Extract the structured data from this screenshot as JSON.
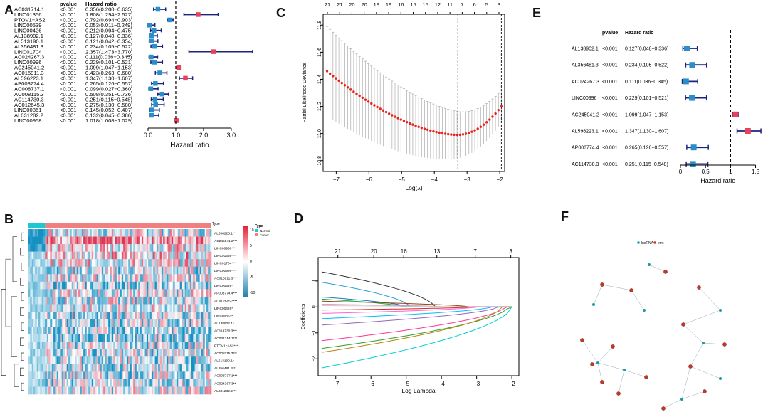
{
  "panel_labels": {
    "A": "A",
    "B": "B",
    "C": "C",
    "D": "D",
    "E": "E",
    "F": "F"
  },
  "chart_data": [
    {
      "id": "A",
      "type": "forest",
      "header_pvalue": "pvalue",
      "header_hr": "Hazard ratio",
      "xlabel": "Hazard ratio",
      "xlim": [
        0,
        3.9
      ],
      "ref_line": 1,
      "ticks": [
        0,
        1,
        2,
        3
      ],
      "tick_labels": [
        "0.0",
        "1.0",
        "2.0",
        "3.0"
      ],
      "rows": [
        {
          "name": "AC031714.1",
          "p": "<0.001",
          "hr_text": "0.356(0.200−0.635)",
          "hr": 0.356,
          "lo": 0.2,
          "hi": 0.635
        },
        {
          "name": "LINC01356",
          "p": "<0.001",
          "hr_text": "1.808(1.294−2.527)",
          "hr": 1.808,
          "lo": 1.294,
          "hi": 2.527
        },
        {
          "name": "PTOV1−AS2",
          "p": "<0.001",
          "hr_text": "0.792(0.694−0.903)",
          "hr": 0.792,
          "lo": 0.694,
          "hi": 0.903
        },
        {
          "name": "LINC00539",
          "p": "<0.001",
          "hr_text": "0.053(0.011−0.249)",
          "hr": 0.053,
          "lo": 0.011,
          "hi": 0.249
        },
        {
          "name": "LINC00426",
          "p": "<0.001",
          "hr_text": "0.212(0.094−0.475)",
          "hr": 0.212,
          "lo": 0.094,
          "hi": 0.475
        },
        {
          "name": "AL138902.1",
          "p": "<0.001",
          "hr_text": "0.127(0.048−0.336)",
          "hr": 0.127,
          "lo": 0.048,
          "hi": 0.336
        },
        {
          "name": "AL513190.1",
          "p": "<0.001",
          "hr_text": "0.121(0.042−0.354)",
          "hr": 0.121,
          "lo": 0.042,
          "hi": 0.354
        },
        {
          "name": "AL356481.3",
          "p": "<0.001",
          "hr_text": "0.234(0.105−0.522)",
          "hr": 0.234,
          "lo": 0.105,
          "hi": 0.522
        },
        {
          "name": "LINC01704",
          "p": "<0.001",
          "hr_text": "2.357(1.473−3.770)",
          "hr": 2.357,
          "lo": 1.473,
          "hi": 3.77
        },
        {
          "name": "AC024267.3",
          "p": "<0.001",
          "hr_text": "0.111(0.036−0.345)",
          "hr": 0.111,
          "lo": 0.036,
          "hi": 0.345
        },
        {
          "name": "LINC00996",
          "p": "<0.001",
          "hr_text": "0.229(0.101−0.521)",
          "hr": 0.229,
          "lo": 0.101,
          "hi": 0.521
        },
        {
          "name": "AC245041.2",
          "p": "<0.001",
          "hr_text": "1.099(1.047−1.153)",
          "hr": 1.099,
          "lo": 1.047,
          "hi": 1.153
        },
        {
          "name": "AC015911.3",
          "p": "<0.001",
          "hr_text": "0.423(0.263−0.680)",
          "hr": 0.423,
          "lo": 0.263,
          "hi": 0.68
        },
        {
          "name": "AL596223.1",
          "p": "<0.001",
          "hr_text": "1.347(1.130−1.607)",
          "hr": 1.347,
          "lo": 1.13,
          "hi": 1.607
        },
        {
          "name": "AP003774.4",
          "p": "<0.001",
          "hr_text": "0.265(0.126−0.557)",
          "hr": 0.265,
          "lo": 0.126,
          "hi": 0.557
        },
        {
          "name": "AC008737.1",
          "p": "<0.001",
          "hr_text": "0.099(0.027−0.360)",
          "hr": 0.099,
          "lo": 0.027,
          "hi": 0.36
        },
        {
          "name": "AC008115.3",
          "p": "<0.001",
          "hr_text": "0.508(0.351−0.736)",
          "hr": 0.508,
          "lo": 0.351,
          "hi": 0.736
        },
        {
          "name": "AC114730.3",
          "p": "<0.001",
          "hr_text": "0.251(0.115−0.548)",
          "hr": 0.251,
          "lo": 0.115,
          "hi": 0.548
        },
        {
          "name": "AC012645.3",
          "p": "<0.001",
          "hr_text": "0.275(0.130−0.580)",
          "hr": 0.275,
          "lo": 0.13,
          "hi": 0.58
        },
        {
          "name": "LINC00861",
          "p": "<0.001",
          "hr_text": "0.145(0.052−0.407)",
          "hr": 0.145,
          "lo": 0.052,
          "hi": 0.407
        },
        {
          "name": "AL031282.2",
          "p": "<0.001",
          "hr_text": "0.132(0.045−0.386)",
          "hr": 0.132,
          "lo": 0.045,
          "hi": 0.386
        },
        {
          "name": "LINC00958",
          "p": "<0.001",
          "hr_text": "1.018(1.008−1.029)",
          "hr": 1.018,
          "lo": 1.008,
          "hi": 1.029
        }
      ]
    },
    {
      "id": "B",
      "type": "heatmap",
      "legend_title": "Type",
      "legend_items": [
        "Normal",
        "Tumor"
      ],
      "legend_colors": [
        "#1ec8d2",
        "#f08080"
      ],
      "scale_ticks": [
        "10",
        "5",
        "0",
        "-5",
        "-10"
      ],
      "normal_fraction": 0.09,
      "rows": [
        "AL596223.1***",
        "AC245041.2***",
        "LINC00958***",
        "LINC01356***",
        "LINC01704***",
        "LINC00996***",
        "AC015911.3***",
        "LINC00539*",
        "AP003774.4***",
        "AC012645.3***",
        "LINC00426*",
        "LINC00861*",
        "AL138902.1*",
        "AC114730.3***",
        "AC031714.1***",
        "PTOV1−AS2***",
        "AC008115.3***",
        "AL513190.1*",
        "AL356481.3**",
        "AC008737.1***",
        "AC024267.3**",
        "AL031282.2***"
      ]
    },
    {
      "id": "C",
      "type": "line-errorbar",
      "xlabel": "Log(λ)",
      "ylabel": "Partial Likelihood Deviance",
      "xlim": [
        -7.4,
        -1.85
      ],
      "ylim": [
        10.72,
        11.88
      ],
      "x_ticks": [
        -7,
        -6,
        -5,
        -4,
        -3,
        -2
      ],
      "y_ticks": [
        10.8,
        11.0,
        11.2,
        11.4,
        11.6,
        11.8
      ],
      "y_tick_labels": [
        "10.8",
        "11.0",
        "11.2",
        "11.4",
        "11.6",
        "11.8"
      ],
      "top_ticks": [
        "21",
        "21",
        "20",
        "20",
        "19",
        "19",
        "16",
        "15",
        "15",
        "12",
        "11",
        "7",
        "6",
        "5",
        "3"
      ],
      "vlines": [
        -3.28,
        -1.95
      ],
      "n_points": 60,
      "min_at": -3.3,
      "start_value": 11.46,
      "min_value": 10.99,
      "end_value": 11.2,
      "err_start": 0.33,
      "err_end": 0.12
    },
    {
      "id": "D",
      "type": "line",
      "xlabel": "Log Lambda",
      "ylabel": "Coefficients",
      "xlim": [
        -7.5,
        -1.8
      ],
      "ylim": [
        -2.65,
        1.9
      ],
      "x_ticks": [
        -7,
        -6,
        -5,
        -4,
        -3,
        -2
      ],
      "y_ticks": [
        -2,
        -1,
        0,
        1
      ],
      "top_ticks": [
        "21",
        "20",
        "16",
        "13",
        "7",
        "3"
      ],
      "top_positions": [
        -6.94,
        -5.92,
        -5.07,
        -4.13,
        -3.04,
        -2.03
      ],
      "series": [
        {
          "start": 1.35,
          "zero": -4.2,
          "color": "#333333"
        },
        {
          "start": 0.95,
          "zero": -4.9,
          "color": "#28a0d8"
        },
        {
          "start": 0.38,
          "zero": -5.0,
          "color": "#1f77b4"
        },
        {
          "start": 0.3,
          "zero": -5.1,
          "color": "#00b050"
        },
        {
          "start": 0.22,
          "zero": -3.2,
          "color": "#8b4513"
        },
        {
          "start": 0.1,
          "zero": -3.9,
          "color": "#e37bb0"
        },
        {
          "start": 0.05,
          "zero": -3.5,
          "color": "#cccccc"
        },
        {
          "start": -0.12,
          "zero": -3.1,
          "color": "#d62728"
        },
        {
          "start": -0.25,
          "zero": -3.0,
          "color": "#ff66cc"
        },
        {
          "start": -0.45,
          "zero": -2.6,
          "color": "#00bfff"
        },
        {
          "start": -0.7,
          "zero": -2.4,
          "color": "#9467bd"
        },
        {
          "start": -1.3,
          "zero": -2.2,
          "color": "#ff3399"
        },
        {
          "start": -1.6,
          "zero": -2.1,
          "color": "#2ca02c"
        },
        {
          "start": -1.75,
          "zero": -2.3,
          "color": "#b8860b"
        },
        {
          "start": -2.35,
          "zero": -2.0,
          "color": "#00ced1"
        }
      ]
    },
    {
      "id": "E",
      "type": "forest",
      "header_pvalue": "pvalue",
      "header_hr": "Hazard ratio",
      "xlabel": "Hazard ratio",
      "xlim": [
        0,
        1.62
      ],
      "ref_line": 1,
      "ticks": [
        0,
        0.5,
        1,
        1.5
      ],
      "tick_labels": [
        "0",
        "0.5",
        "1",
        "1.5"
      ],
      "rows": [
        {
          "name": "AL138902.1",
          "p": "<0.001",
          "hr_text": "0.127(0.048−0.336)",
          "hr": 0.127,
          "lo": 0.048,
          "hi": 0.336
        },
        {
          "name": "AL356481.3",
          "p": "<0.001",
          "hr_text": "0.234(0.105−0.522)",
          "hr": 0.234,
          "lo": 0.105,
          "hi": 0.522
        },
        {
          "name": "AC024267.3",
          "p": "<0.001",
          "hr_text": "0.111(0.036−0.345)",
          "hr": 0.111,
          "lo": 0.036,
          "hi": 0.345
        },
        {
          "name": "LINC00996",
          "p": "<0.001",
          "hr_text": "0.229(0.101−0.521)",
          "hr": 0.229,
          "lo": 0.101,
          "hi": 0.521
        },
        {
          "name": "AC245041.2",
          "p": "<0.001",
          "hr_text": "1.099(1.047−1.153)",
          "hr": 1.099,
          "lo": 1.047,
          "hi": 1.153
        },
        {
          "name": "AL596223.1",
          "p": "<0.001",
          "hr_text": "1.347(1.130−1.607)",
          "hr": 1.347,
          "lo": 1.13,
          "hi": 1.607
        },
        {
          "name": "AP003774.4",
          "p": "<0.001",
          "hr_text": "0.265(0.126−0.557)",
          "hr": 0.265,
          "lo": 0.126,
          "hi": 0.557
        },
        {
          "name": "AC114730.3",
          "p": "<0.001",
          "hr_text": "0.251(0.115−0.548)",
          "hr": 0.251,
          "lo": 0.115,
          "hi": 0.548
        }
      ]
    },
    {
      "id": "F",
      "type": "network",
      "legend": [
        "lncRNA",
        "emt"
      ],
      "legend_colors": [
        "#1a9aa8",
        "#c0392b"
      ]
    }
  ],
  "colors": {
    "low_marker": "#2a8fc9",
    "high_marker": "#e8415a",
    "ci": "#1a237e",
    "dot": "#e8221c"
  }
}
